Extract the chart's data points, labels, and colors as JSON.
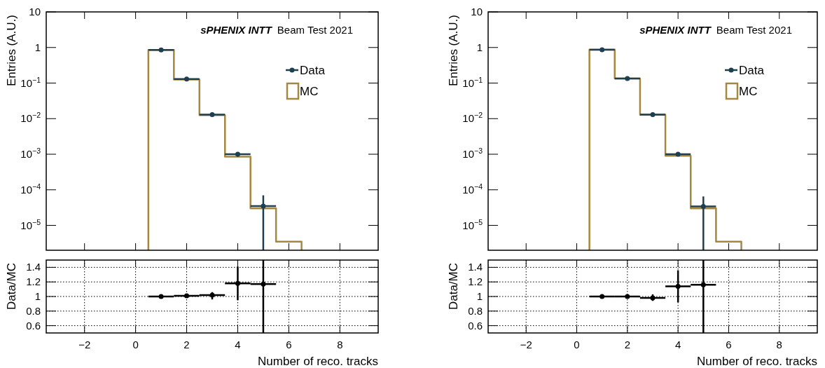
{
  "chart_data": [
    {
      "type": "histogram",
      "ylabel": "Entries (A.U.)",
      "annotations": [
        "sPHENIX INTT",
        "Beam Test 2021"
      ],
      "log": "y",
      "legend": "top right",
      "tick_labels": "y",
      "xlim": [
        -3.5,
        9.5
      ],
      "xticks": [
        -2,
        0,
        2,
        4,
        6,
        8
      ],
      "ylim": [
        2e-06,
        10
      ],
      "yticks": [
        {
          "value": 10,
          "label": "10"
        },
        {
          "value": 1,
          "label": "1"
        },
        {
          "value": 0.1,
          "label": "10$^{−1}$"
        },
        {
          "value": 0.01,
          "label": "10$^{−2}$"
        },
        {
          "value": 0.001,
          "label": "10$^{−3}$"
        },
        {
          "value": 0.0001,
          "label": "10$^{−4}$"
        },
        {
          "value": 1e-05,
          "label": "10$^{−5}$"
        }
      ],
      "bins": [
        0.5,
        1.5,
        2.5,
        3.5,
        4.5,
        5.5,
        6.5
      ],
      "marker": "circle",
      "series": [
        {
          "name": "MC",
          "color": "#a6873f",
          "values": [
            0.85,
            0.125,
            0.0125,
            0.00085,
            3e-05,
            3.5e-06
          ]
        },
        {
          "name": "Data",
          "type": "scatter",
          "color": "#1e3f4f",
          "x": [
            1,
            2,
            3,
            4,
            5
          ],
          "values": [
            0.85,
            0.13,
            0.013,
            0.001,
            3.5e-05
          ],
          "xerrors": [
            0.5,
            0.5,
            0.5,
            0.5,
            0.5
          ],
          "errors": [
            null,
            null,
            null,
            [
              0.00085,
              0.00115
            ],
            [
              2e-06,
              7e-05
            ]
          ]
        }
      ]
    },
    {
      "type": "histogram",
      "ylabel": "Entries (A.U.)",
      "annotations": [
        "sPHENIX INTT",
        "Beam Test 2021"
      ],
      "log": "y",
      "legend": "top right",
      "tick_labels": "y",
      "xlim": [
        -3.5,
        9.5
      ],
      "xticks": [
        -2,
        0,
        2,
        4,
        6,
        8
      ],
      "ylim": [
        2e-06,
        10
      ],
      "yticks": [
        {
          "value": 10,
          "label": "10"
        },
        {
          "value": 1,
          "label": "1"
        },
        {
          "value": 0.1,
          "label": "10$^{−1}$"
        },
        {
          "value": 0.01,
          "label": "10$^{−2}$"
        },
        {
          "value": 0.001,
          "label": "10$^{−3}$"
        },
        {
          "value": 0.0001,
          "label": "10$^{−4}$"
        },
        {
          "value": 1e-05,
          "label": "10$^{−5}$"
        }
      ],
      "bins": [
        0.5,
        1.5,
        2.5,
        3.5,
        4.5,
        5.5,
        6.5
      ],
      "marker": "circle",
      "series": [
        {
          "name": "MC",
          "color": "#a6873f",
          "values": [
            0.87,
            0.135,
            0.0128,
            0.0009,
            3e-05,
            3.5e-06
          ]
        },
        {
          "name": "Data",
          "type": "scatter",
          "color": "#1e3f4f",
          "x": [
            1,
            2,
            3,
            4,
            5
          ],
          "values": [
            0.86,
            0.135,
            0.013,
            0.001,
            3.4e-05
          ],
          "xerrors": [
            0.5,
            0.5,
            0.5,
            0.5,
            0.5
          ],
          "errors": [
            null,
            null,
            null,
            [
              0.0009,
              0.00115
            ],
            [
              2e-06,
              6.5e-05
            ]
          ]
        }
      ]
    },
    {
      "type": "scatter",
      "xlabel": "Number of reco. tracks",
      "ylabel": "Data/MC",
      "grid": true,
      "marker": "circle",
      "xlim": [
        -3.5,
        9.5
      ],
      "xticks": [
        -2,
        0,
        2,
        4,
        6,
        8
      ],
      "ylim": [
        0.5,
        1.5
      ],
      "yticks": [
        0.6,
        0.8,
        1,
        1.2,
        1.4
      ],
      "series": [
        {
          "color": "#000000",
          "x": [
            1,
            2,
            3,
            4,
            5
          ],
          "values": [
            1.0,
            1.01,
            1.02,
            1.18,
            1.17
          ],
          "xerrors": [
            0.5,
            0.5,
            0.5,
            0.5,
            0.5
          ],
          "errors": [
            null,
            null,
            [
              0.96,
              1.06
            ],
            [
              0.95,
              1.41
            ],
            [
              0.5,
              1.5
            ]
          ]
        }
      ]
    },
    {
      "type": "scatter",
      "xlabel": "Number of reco. tracks",
      "ylabel": "Data/MC",
      "grid": true,
      "marker": "circle",
      "xlim": [
        -3.5,
        9.5
      ],
      "xticks": [
        -2,
        0,
        2,
        4,
        6,
        8
      ],
      "ylim": [
        0.5,
        1.5
      ],
      "yticks": [
        0.6,
        0.8,
        1,
        1.2,
        1.4
      ],
      "series": [
        {
          "color": "#000000",
          "x": [
            1,
            2,
            3,
            4,
            5
          ],
          "values": [
            1.0,
            1.0,
            0.98,
            1.14,
            1.16
          ],
          "xerrors": [
            0.5,
            0.5,
            0.5,
            0.5,
            0.5
          ],
          "errors": [
            null,
            null,
            [
              0.94,
              1.03
            ],
            [
              0.92,
              1.36
            ],
            [
              0.5,
              1.5
            ]
          ]
        }
      ]
    }
  ]
}
